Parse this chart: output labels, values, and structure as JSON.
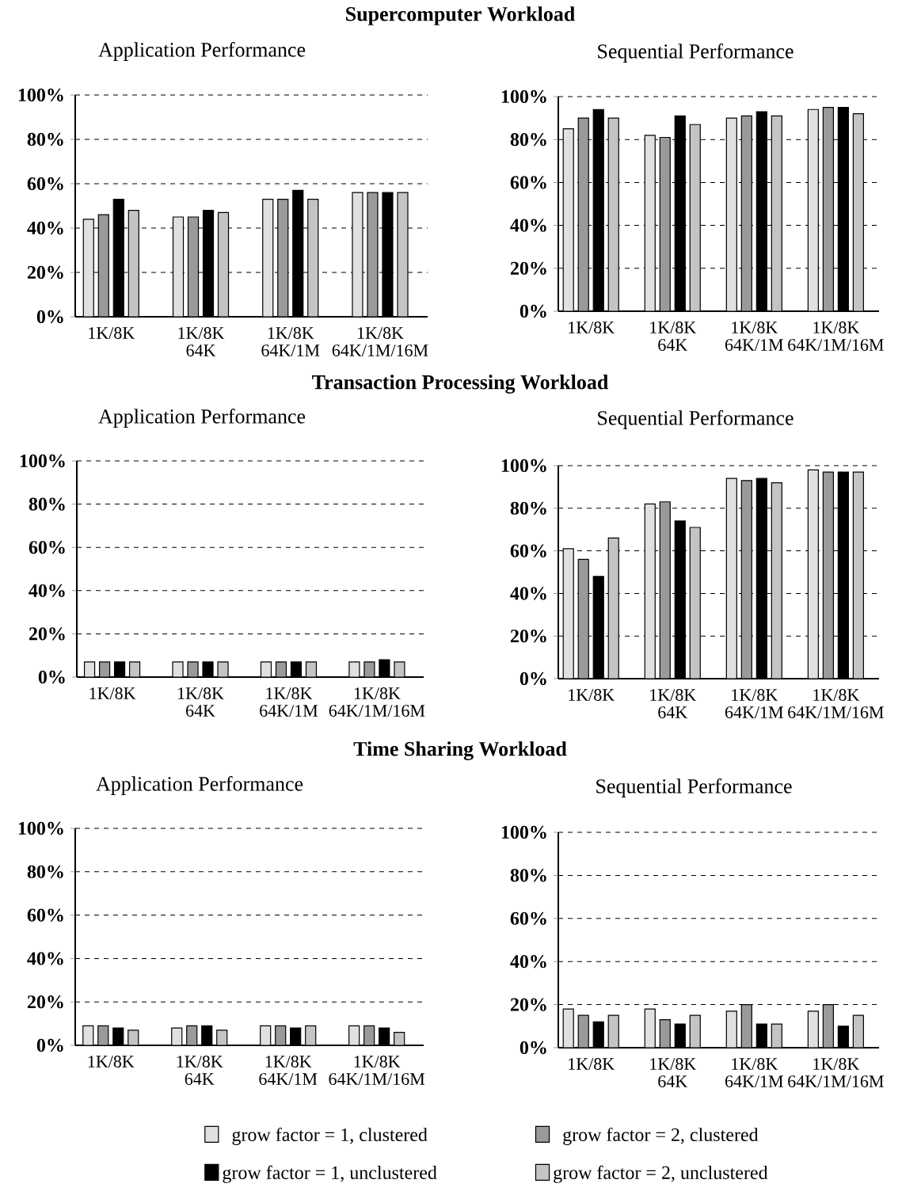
{
  "chart_data": [
    {
      "type": "bar",
      "title": "Supercomputer Workload",
      "subtitle": "Application Performance",
      "categories": [
        "1K/8K",
        "1K/8K 64K",
        "1K/8K 64K/1M",
        "1K/8K 64K/1M/16M"
      ],
      "series": [
        {
          "color": "#e0e0e0",
          "values": [
            44,
            45,
            53,
            56
          ]
        },
        {
          "color": "#9a9a9a",
          "values": [
            46,
            45,
            53,
            56
          ]
        },
        {
          "color": "#000000",
          "values": [
            53,
            48,
            57,
            56
          ]
        },
        {
          "color": "#c4c4c4",
          "values": [
            48,
            47,
            53,
            56
          ]
        }
      ],
      "ylim": [
        0,
        100
      ],
      "yticks": [
        {
          "value": 0,
          "label": "0%"
        },
        {
          "value": 20,
          "label": "20%"
        },
        {
          "value": 40,
          "label": "40%"
        },
        {
          "value": 60,
          "label": "60%"
        },
        {
          "value": 80,
          "label": "80%"
        },
        {
          "value": 100,
          "label": "100%"
        }
      ],
      "grid": "y"
    },
    {
      "type": "bar",
      "title": "Sequential Performance",
      "categories": [
        "1K/8K",
        "1K/8K 64K",
        "1K/8K 64K/1M",
        "1K/8K 64K/1M/16M"
      ],
      "series": [
        {
          "color": "#e0e0e0",
          "values": [
            85,
            82,
            90,
            94
          ]
        },
        {
          "color": "#9a9a9a",
          "values": [
            90,
            81,
            91,
            95
          ]
        },
        {
          "color": "#000000",
          "values": [
            94,
            91,
            93,
            95
          ]
        },
        {
          "color": "#c4c4c4",
          "values": [
            90,
            87,
            91,
            92
          ]
        }
      ],
      "ylim": [
        0,
        100
      ],
      "yticks": [
        {
          "value": 0,
          "label": "0%"
        },
        {
          "value": 20,
          "label": "20%"
        },
        {
          "value": 40,
          "label": "40%"
        },
        {
          "value": 60,
          "label": "60%"
        },
        {
          "value": 80,
          "label": "80%"
        },
        {
          "value": 100,
          "label": "100%"
        }
      ],
      "grid": "y"
    },
    {
      "type": "bar",
      "title": "Transaction Processing Workload",
      "subtitle": "Application Performance",
      "categories": [
        "1K/8K",
        "1K/8K 64K",
        "1K/8K 64K/1M",
        "1K/8K 64K/1M/16M"
      ],
      "series": [
        {
          "color": "#e0e0e0",
          "values": [
            7,
            7,
            7,
            7
          ]
        },
        {
          "color": "#9a9a9a",
          "values": [
            7,
            7,
            7,
            7
          ]
        },
        {
          "color": "#000000",
          "values": [
            7,
            7,
            7,
            8
          ]
        },
        {
          "color": "#c4c4c4",
          "values": [
            7,
            7,
            7,
            7
          ]
        }
      ],
      "ylim": [
        0,
        100
      ],
      "yticks": [
        {
          "value": 0,
          "label": "0%"
        },
        {
          "value": 20,
          "label": "20%"
        },
        {
          "value": 40,
          "label": "40%"
        },
        {
          "value": 60,
          "label": "60%"
        },
        {
          "value": 80,
          "label": "80%"
        },
        {
          "value": 100,
          "label": "100%"
        }
      ],
      "grid": "y"
    },
    {
      "type": "bar",
      "title": "Sequential Performance",
      "categories": [
        "1K/8K",
        "1K/8K 64K",
        "1K/8K 64K/1M",
        "1K/8K 64K/1M/16M"
      ],
      "series": [
        {
          "color": "#e0e0e0",
          "values": [
            61,
            82,
            94,
            98
          ]
        },
        {
          "color": "#9a9a9a",
          "values": [
            56,
            83,
            93,
            97
          ]
        },
        {
          "color": "#000000",
          "values": [
            48,
            74,
            94,
            97
          ]
        },
        {
          "color": "#c4c4c4",
          "values": [
            66,
            71,
            92,
            97
          ]
        }
      ],
      "ylim": [
        0,
        100
      ],
      "yticks": [
        {
          "value": 0,
          "label": "0%"
        },
        {
          "value": 20,
          "label": "20%"
        },
        {
          "value": 40,
          "label": "40%"
        },
        {
          "value": 60,
          "label": "60%"
        },
        {
          "value": 80,
          "label": "80%"
        },
        {
          "value": 100,
          "label": "100%"
        }
      ],
      "grid": "y"
    },
    {
      "type": "bar",
      "title": "Time Sharing Workload",
      "subtitle": "Application Performance",
      "categories": [
        "1K/8K",
        "1K/8K 64K",
        "1K/8K 64K/1M",
        "1K/8K 64K/1M/16M"
      ],
      "series": [
        {
          "color": "#e0e0e0",
          "values": [
            9,
            8,
            9,
            9
          ]
        },
        {
          "color": "#9a9a9a",
          "values": [
            9,
            9,
            9,
            9
          ]
        },
        {
          "color": "#000000",
          "values": [
            8,
            9,
            8,
            8
          ]
        },
        {
          "color": "#c4c4c4",
          "values": [
            7,
            7,
            9,
            6
          ]
        }
      ],
      "ylim": [
        0,
        100
      ],
      "yticks": [
        {
          "value": 0,
          "label": "0%"
        },
        {
          "value": 20,
          "label": "20%"
        },
        {
          "value": 40,
          "label": "40%"
        },
        {
          "value": 60,
          "label": "60%"
        },
        {
          "value": 80,
          "label": "80%"
        },
        {
          "value": 100,
          "label": "100%"
        }
      ],
      "grid": "y"
    },
    {
      "type": "bar",
      "title": "Sequential Performance",
      "categories": [
        "1K/8K",
        "1K/8K 64K",
        "1K/8K 64K/1M",
        "1K/8K 64K/1M/16M"
      ],
      "series": [
        {
          "name": "grow factor = 1, clustered",
          "color": "#e0e0e0",
          "values": [
            18,
            18,
            17,
            17
          ]
        },
        {
          "name": "grow factor = 2, clustered",
          "color": "#9a9a9a",
          "values": [
            15,
            13,
            20,
            20
          ]
        },
        {
          "name": "grow factor = 1, unclustered",
          "color": "#000000",
          "values": [
            12,
            11,
            11,
            10
          ]
        },
        {
          "name": "grow factor = 2, unclustered",
          "color": "#c4c4c4",
          "values": [
            15,
            15,
            11,
            15
          ]
        }
      ],
      "ylim": [
        0,
        100
      ],
      "yticks": [
        {
          "value": 0,
          "label": "0%"
        },
        {
          "value": 20,
          "label": "20%"
        },
        {
          "value": 40,
          "label": "40%"
        },
        {
          "value": 60,
          "label": "60%"
        },
        {
          "value": 80,
          "label": "80%"
        },
        {
          "value": 100,
          "label": "100%"
        }
      ],
      "grid": "y",
      "legend": "bottom"
    }
  ]
}
